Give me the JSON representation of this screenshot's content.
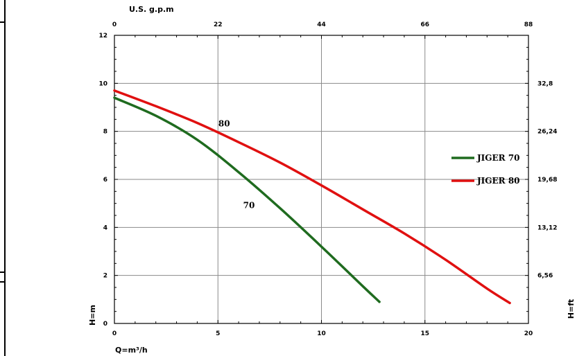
{
  "chart_data": {
    "type": "line",
    "x_unit_bottom": "Q=m³/h",
    "x_unit_top": "U.S. g.p.m",
    "y_unit_left": "H=m",
    "y_unit_right": "H=ft",
    "xlim": [
      0,
      20
    ],
    "ylim": [
      0,
      12
    ],
    "grid": true,
    "legend_placement": "right",
    "x_ticks": [
      "0",
      "5",
      "10",
      "15",
      "20"
    ],
    "y_ticks": [
      "0",
      "2",
      "4",
      "6",
      "8",
      "10",
      "12"
    ],
    "top_ticks": [
      "0",
      "22",
      "44",
      "66",
      "88"
    ],
    "right_ticks": [
      "6,56",
      "13,12",
      "19,68",
      "26,24",
      "32,8"
    ],
    "right_tick_values": [
      2,
      4,
      6,
      8,
      10
    ],
    "series": [
      {
        "name": "JIGER 70",
        "curve_label": "70",
        "curve_label_at": [
          6.5,
          4.8
        ],
        "color": "#1f6b1f",
        "x": [
          0,
          2,
          4,
          6,
          8,
          10,
          12,
          12.8
        ],
        "y": [
          9.4,
          8.65,
          7.65,
          6.3,
          4.8,
          3.2,
          1.55,
          0.9
        ]
      },
      {
        "name": "JIGER 80",
        "curve_label": "80",
        "curve_label_at": [
          5.3,
          8.2
        ],
        "color": "#e01010",
        "x": [
          0,
          2,
          4,
          6,
          8,
          10,
          12,
          14,
          16,
          18,
          19.1
        ],
        "y": [
          9.7,
          9.05,
          8.35,
          7.55,
          6.7,
          5.75,
          4.75,
          3.75,
          2.65,
          1.45,
          0.85
        ]
      }
    ]
  }
}
